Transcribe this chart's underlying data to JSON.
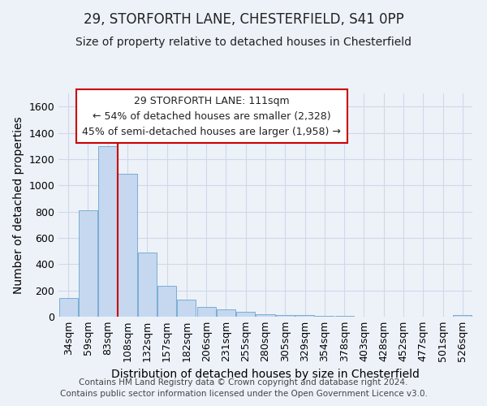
{
  "title_line1": "29, STORFORTH LANE, CHESTERFIELD, S41 0PP",
  "title_line2": "Size of property relative to detached houses in Chesterfield",
  "xlabel": "Distribution of detached houses by size in Chesterfield",
  "ylabel": "Number of detached properties",
  "categories": [
    "34sqm",
    "59sqm",
    "83sqm",
    "108sqm",
    "132sqm",
    "157sqm",
    "182sqm",
    "206sqm",
    "231sqm",
    "255sqm",
    "280sqm",
    "305sqm",
    "329sqm",
    "354sqm",
    "378sqm",
    "403sqm",
    "428sqm",
    "452sqm",
    "477sqm",
    "501sqm",
    "526sqm"
  ],
  "values": [
    140,
    810,
    1300,
    1090,
    490,
    235,
    130,
    75,
    55,
    35,
    20,
    15,
    15,
    5,
    5,
    0,
    0,
    0,
    0,
    0,
    10
  ],
  "bar_color": "#c5d8ef",
  "bar_edge_color": "#7aadd4",
  "vline_x_index": 3,
  "vline_color": "#cc0000",
  "annotation_text": "29 STORFORTH LANE: 111sqm\n← 54% of detached houses are smaller (2,328)\n45% of semi-detached houses are larger (1,958) →",
  "annotation_box_facecolor": "#ffffff",
  "annotation_box_edgecolor": "#cc0000",
  "ylim": [
    0,
    1700
  ],
  "yticks": [
    0,
    200,
    400,
    600,
    800,
    1000,
    1200,
    1400,
    1600
  ],
  "bg_color": "#edf2f9",
  "plot_bg_color": "#edf2f9",
  "footer_text": "Contains HM Land Registry data © Crown copyright and database right 2024.\nContains public sector information licensed under the Open Government Licence v3.0.",
  "title_fontsize": 12,
  "subtitle_fontsize": 10,
  "axis_label_fontsize": 10,
  "tick_fontsize": 9,
  "annotation_fontsize": 9,
  "footer_fontsize": 7.5,
  "grid_color": "#d0d8e8"
}
